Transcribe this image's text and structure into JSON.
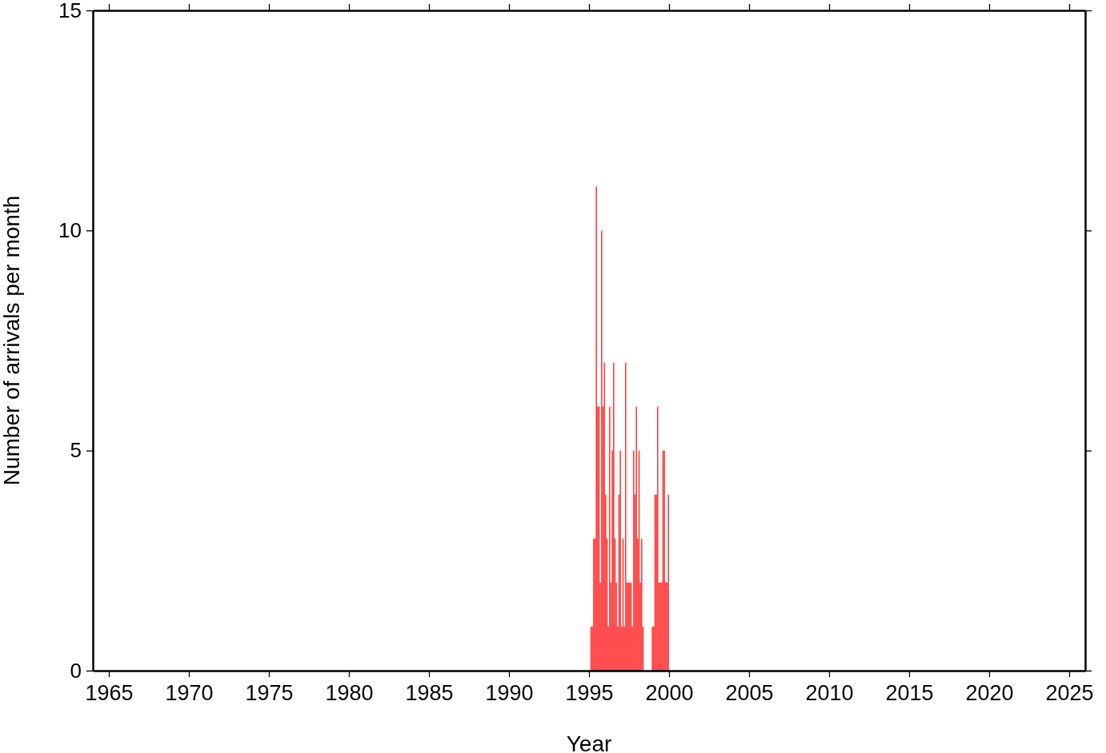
{
  "chart_data": {
    "type": "bar",
    "xlabel": "Year",
    "ylabel": "Number of arrivals per month",
    "x": [
      1995.042,
      1995.125,
      1995.208,
      1995.292,
      1995.375,
      1995.458,
      1995.542,
      1995.625,
      1995.708,
      1995.792,
      1995.875,
      1995.958,
      1996.042,
      1996.125,
      1996.208,
      1996.292,
      1996.375,
      1996.458,
      1996.542,
      1996.625,
      1996.708,
      1996.792,
      1996.875,
      1996.958,
      1997.042,
      1997.125,
      1997.208,
      1997.292,
      1997.375,
      1997.458,
      1997.542,
      1997.625,
      1997.708,
      1997.792,
      1997.875,
      1997.958,
      1998.042,
      1998.125,
      1998.208,
      1998.292,
      1998.375,
      1998.458,
      1998.542,
      1998.625,
      1998.708,
      1998.792,
      1998.875,
      1998.958,
      1999.042,
      1999.125,
      1999.208,
      1999.292,
      1999.375,
      1999.458,
      1999.542,
      1999.625,
      1999.708,
      1999.792,
      1999.875,
      1999.958
    ],
    "values": [
      0,
      1,
      1,
      3,
      3,
      11,
      6,
      6,
      2,
      10,
      6,
      7,
      4,
      3,
      1,
      6,
      2,
      5,
      7,
      3,
      2,
      1,
      4,
      5,
      1,
      3,
      1,
      7,
      2,
      2,
      2,
      2,
      1,
      5,
      4,
      6,
      3,
      5,
      2,
      3,
      1,
      0,
      0,
      0,
      0,
      0,
      0,
      1,
      1,
      4,
      4,
      6,
      2,
      2,
      2,
      5,
      5,
      2,
      2,
      4
    ],
    "color": "#ff2020",
    "xlim": [
      1964,
      2026
    ],
    "xticks": [
      1965,
      1970,
      1975,
      1980,
      1985,
      1990,
      1995,
      2000,
      2005,
      2010,
      2015,
      2020,
      2025
    ],
    "ylim": [
      0,
      15
    ],
    "yticks": [
      0,
      5,
      10,
      15
    ],
    "grid": false
  }
}
